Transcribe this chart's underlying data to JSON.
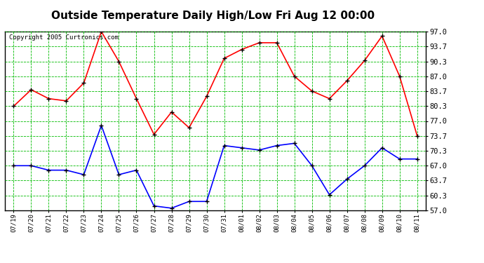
{
  "title": "Outside Temperature Daily High/Low Fri Aug 12 00:00",
  "copyright": "Copyright 2005 Curtronics.com",
  "x_labels": [
    "07/19",
    "07/20",
    "07/21",
    "07/22",
    "07/23",
    "07/24",
    "07/25",
    "07/26",
    "07/27",
    "07/28",
    "07/29",
    "07/30",
    "07/31",
    "08/01",
    "08/02",
    "08/03",
    "08/04",
    "08/05",
    "08/06",
    "08/07",
    "08/08",
    "08/09",
    "08/10",
    "08/11"
  ],
  "high_values": [
    80.3,
    84.0,
    82.0,
    81.5,
    85.5,
    97.0,
    90.3,
    82.0,
    74.0,
    79.0,
    75.5,
    82.5,
    91.0,
    93.0,
    94.5,
    94.5,
    87.0,
    83.7,
    82.0,
    86.0,
    90.5,
    96.0,
    87.0,
    73.7
  ],
  "low_values": [
    67.0,
    67.0,
    66.0,
    66.0,
    65.0,
    76.0,
    65.0,
    66.0,
    58.0,
    57.5,
    59.0,
    59.0,
    71.5,
    71.0,
    70.5,
    71.5,
    72.0,
    67.0,
    60.5,
    64.0,
    67.0,
    71.0,
    68.5,
    68.5
  ],
  "high_color": "#ff0000",
  "low_color": "#0000ff",
  "bg_color": "#ffffff",
  "plot_bg_color": "#ffffff",
  "grid_color": "#00bb00",
  "title_color": "#000000",
  "y_min": 57.0,
  "y_max": 97.0,
  "y_ticks": [
    57.0,
    60.3,
    63.7,
    67.0,
    70.3,
    73.7,
    77.0,
    80.3,
    83.7,
    87.0,
    90.3,
    93.7,
    97.0
  ],
  "marker": "+",
  "marker_color": "#000000",
  "marker_size": 5,
  "line_width": 1.2,
  "title_fontsize": 11,
  "xlabel_fontsize": 6.5,
  "ylabel_fontsize": 7.5
}
